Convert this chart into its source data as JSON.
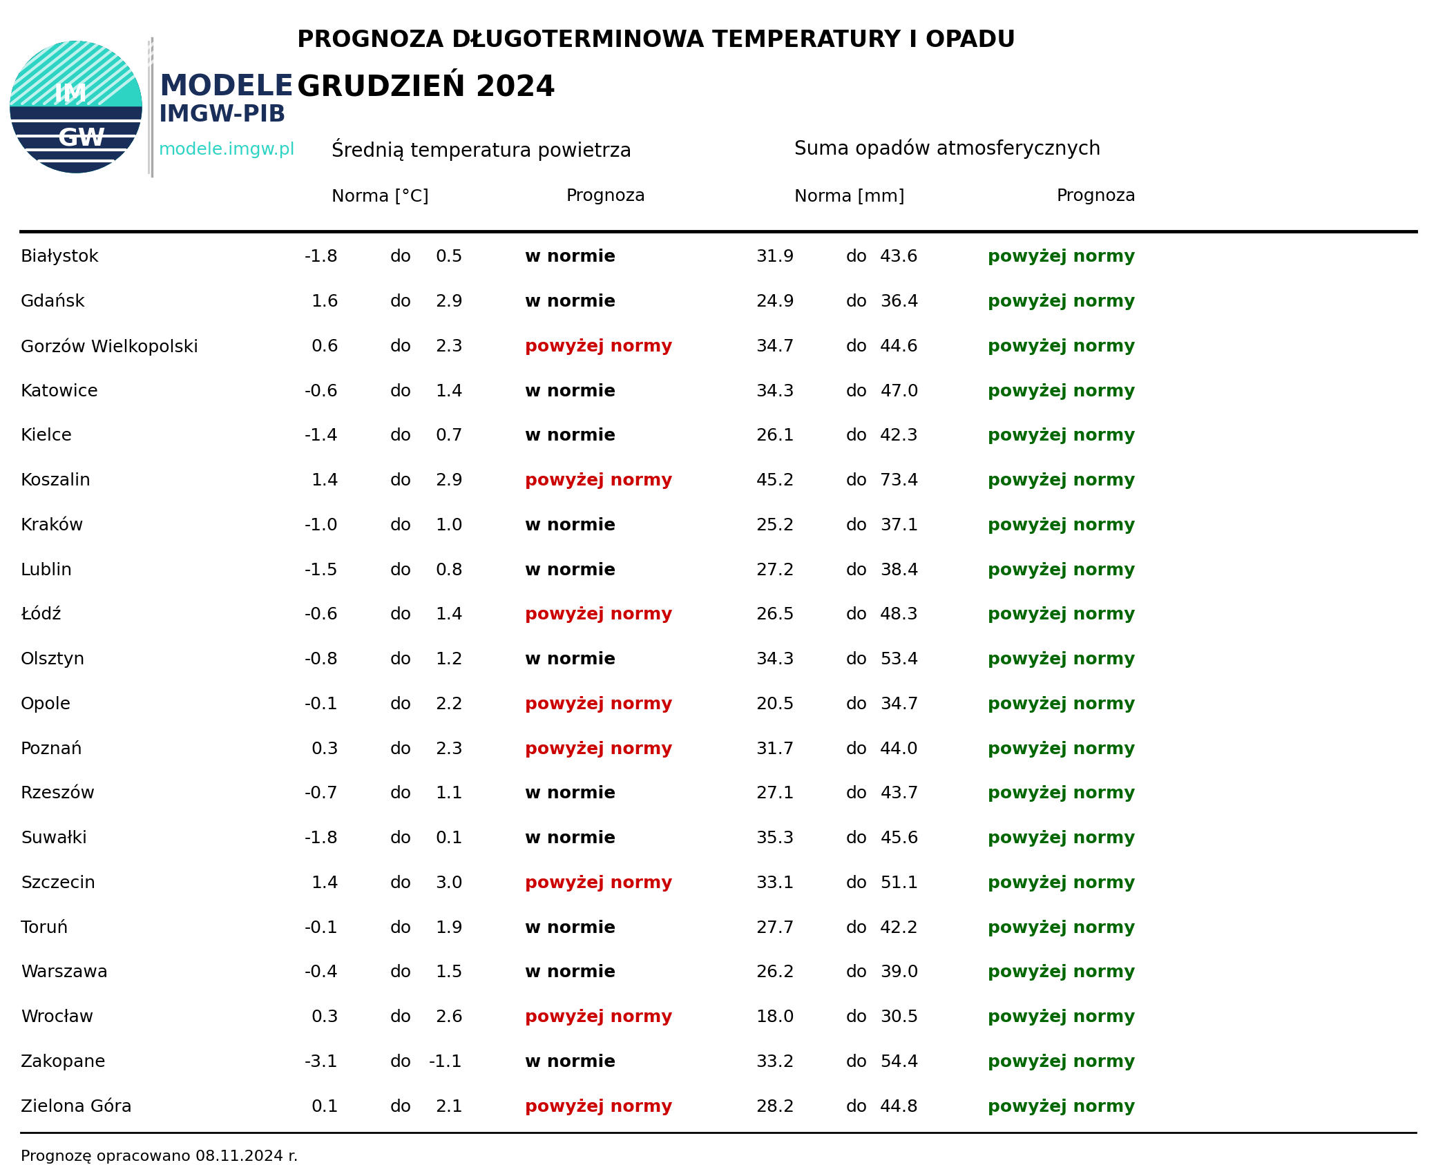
{
  "title1": "PROGNOZA DŁUGOTERMINOWA TEMPERATURY I OPADU",
  "title2": "GRUDZIEŃ 2024",
  "header_temp": "Średnią temperatura powietrza",
  "header_precip": "Suma opadów atmosferycznych",
  "subheader_norma_temp": "Norma [°C]",
  "subheader_prognoza": "Prognoza",
  "subheader_norma_precip": "Norma [mm]",
  "footer": "Prognozę opracowano 08.11.2024 r.",
  "cities": [
    "Białystok",
    "Gdańsk",
    "Gorzów Wielkopolski",
    "Katowice",
    "Kielce",
    "Koszalin",
    "Kraków",
    "Lublin",
    "Łódź",
    "Olsztyn",
    "Opole",
    "Poznań",
    "Rzeszów",
    "Suwałki",
    "Szczecin",
    "Toruń",
    "Warszawa",
    "Wrocław",
    "Zakopane",
    "Zielona Góra"
  ],
  "temp_norm_low": [
    -1.8,
    1.6,
    0.6,
    -0.6,
    -1.4,
    1.4,
    -1.0,
    -1.5,
    -0.6,
    -0.8,
    -0.1,
    0.3,
    -0.7,
    -1.8,
    1.4,
    -0.1,
    -0.4,
    0.3,
    -3.1,
    0.1
  ],
  "temp_norm_high": [
    0.5,
    2.9,
    2.3,
    1.4,
    0.7,
    2.9,
    1.0,
    0.8,
    1.4,
    1.2,
    2.2,
    2.3,
    1.1,
    0.1,
    3.0,
    1.9,
    1.5,
    2.6,
    -1.1,
    2.1
  ],
  "temp_prognoza": [
    "w normie",
    "w normie",
    "powyżej normy",
    "w normie",
    "w normie",
    "powyżej normy",
    "w normie",
    "w normie",
    "powyżej normy",
    "w normie",
    "powyżej normy",
    "powyżej normy",
    "w normie",
    "w normie",
    "powyżej normy",
    "w normie",
    "w normie",
    "powyżej normy",
    "w normie",
    "powyżej normy"
  ],
  "precip_norm_low": [
    31.9,
    24.9,
    34.7,
    34.3,
    26.1,
    45.2,
    25.2,
    27.2,
    26.5,
    34.3,
    20.5,
    31.7,
    27.1,
    35.3,
    33.1,
    27.7,
    26.2,
    18.0,
    33.2,
    28.2
  ],
  "precip_norm_high": [
    43.6,
    36.4,
    44.6,
    47.0,
    42.3,
    73.4,
    37.1,
    38.4,
    48.3,
    53.4,
    34.7,
    44.0,
    43.7,
    45.6,
    51.1,
    42.2,
    39.0,
    30.5,
    54.4,
    44.8
  ],
  "precip_prognoza": [
    "powyżej normy",
    "powyżej normy",
    "powyżej normy",
    "powyżej normy",
    "powyżej normy",
    "powyżej normy",
    "powyżej normy",
    "powyżej normy",
    "powyżej normy",
    "powyżej normy",
    "powyżej normy",
    "powyżej normy",
    "powyżej normy",
    "powyżej normy",
    "powyżej normy",
    "powyżej normy",
    "powyżej normy",
    "powyżej normy",
    "powyżej normy",
    "powyżej normy"
  ],
  "color_temp_above": "#cc0000",
  "color_precip_above": "#006600",
  "color_normal": "#000000",
  "color_logo_dark": "#1a2e5a",
  "color_logo_teal": "#2dd4c4",
  "color_modele": "#1a2e5a",
  "color_url": "#2dd4c4",
  "bg_color": "#ffffff"
}
